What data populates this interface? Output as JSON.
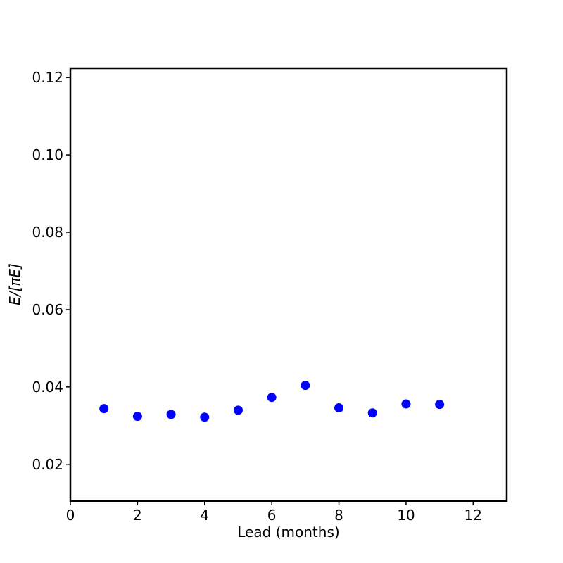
{
  "chart_data": {
    "type": "scatter",
    "xlabel": "Lead (months)",
    "ylabel": "E/[πE]",
    "series": [
      {
        "color": "#0000ff",
        "x": [
          1,
          2,
          3,
          4,
          5,
          6,
          7,
          8,
          9,
          10,
          11
        ],
        "values": [
          0.0344,
          0.0324,
          0.0329,
          0.0322,
          0.034,
          0.0373,
          0.0404,
          0.0346,
          0.0333,
          0.0356,
          0.0355
        ]
      }
    ],
    "xlim": [
      0,
      13
    ],
    "xticks": [
      0,
      2,
      4,
      6,
      8,
      10,
      12
    ],
    "ylim": [
      0.0105,
      0.1224
    ],
    "yticks": [
      0.02,
      0.04,
      0.06,
      0.08,
      {
        "value": 0.1,
        "label": "0.10"
      },
      0.12
    ],
    "grid": false
  }
}
